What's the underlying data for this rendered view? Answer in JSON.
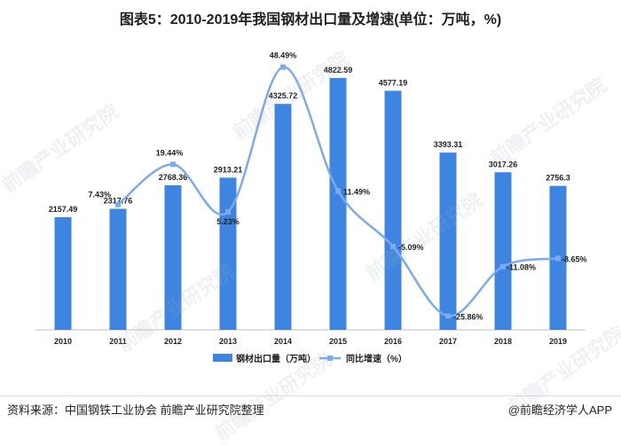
{
  "title": "图表5：2010-2019年我国钢材出口量及增速(单位：万吨，%)",
  "source": "资料来源：中国钢铁工业协会 前瞻产业研究院整理",
  "brand": "@前瞻经济学人APP",
  "watermark": "前瞻产业研究院",
  "colors": {
    "bar": "#3d85e0",
    "line": "#7aaaf0",
    "axis": "#bfbfbf",
    "text": "#1f1f1f"
  },
  "chart_data": {
    "type": "bar",
    "title": "2010-2019年我国钢材出口量及增速(单位：万吨，%)",
    "categories": [
      "2010",
      "2011",
      "2012",
      "2013",
      "2014",
      "2015",
      "2016",
      "2017",
      "2018",
      "2019"
    ],
    "series": [
      {
        "name": "钢材出口量（万吨）",
        "type": "bar",
        "values": [
          2157.49,
          2317.76,
          2768.36,
          2913.21,
          4325.72,
          4822.59,
          4577.19,
          3393.31,
          3017.26,
          2756.3
        ],
        "labels": [
          "2157.49",
          "2317.76",
          "2768.36",
          "2913.21",
          "4325.72",
          "4822.59",
          "4577.19",
          "3393.31",
          "3017.26",
          "2756.3"
        ]
      },
      {
        "name": "同比增速（%）",
        "type": "line",
        "values": [
          null,
          7.43,
          19.44,
          5.23,
          48.49,
          11.49,
          -5.09,
          -25.86,
          -11.08,
          -8.65
        ],
        "labels": [
          "",
          "7.43%",
          "19.44%",
          "5.23%",
          "48.49%",
          "11.49%",
          "-5.09%",
          "-25.86%",
          "-11.08%",
          "-8.65%"
        ]
      }
    ],
    "bar_ylim": [
      0,
      5500
    ],
    "line_ylim": [
      -30,
      50
    ],
    "legend": "bottom-center"
  }
}
